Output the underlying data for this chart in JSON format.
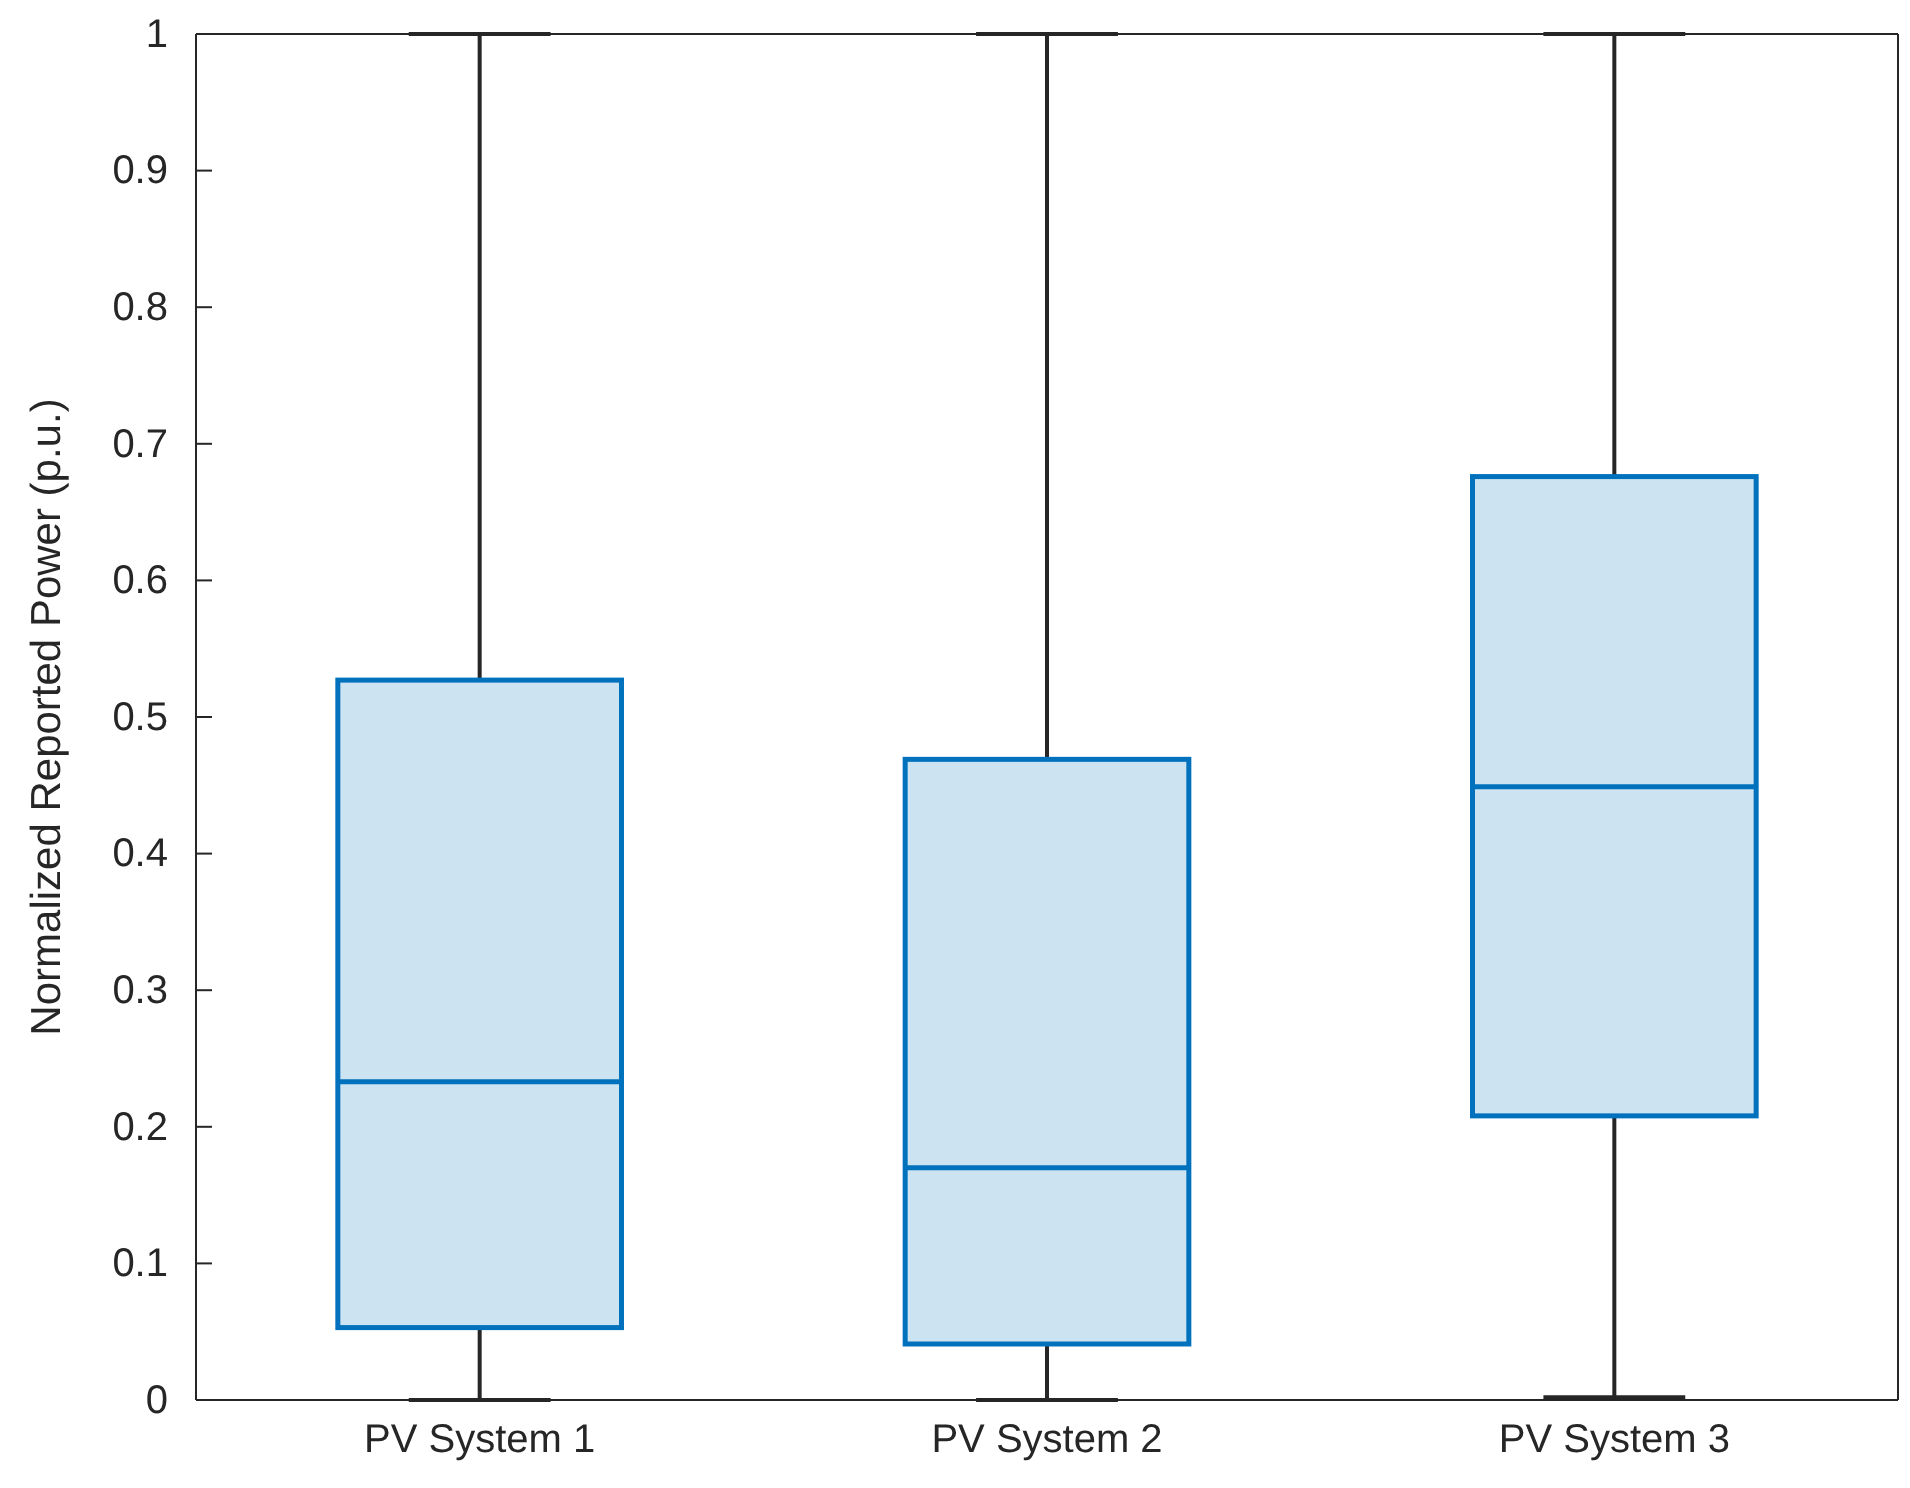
{
  "chart_data": {
    "type": "box",
    "ylabel": "Normalized Reported Power (p.u.)",
    "categories": [
      "PV System 1",
      "PV System 2",
      "PV System 3"
    ],
    "series": [
      {
        "color": "#0072bd",
        "boxes": [
          {
            "low": 0,
            "q1": 0.053,
            "median": 0.233,
            "q3": 0.527,
            "high": 1
          },
          {
            "low": 0,
            "q1": 0.041,
            "median": 0.17,
            "q3": 0.469,
            "high": 1
          },
          {
            "low": 0.002,
            "q1": 0.208,
            "median": 0.449,
            "q3": 0.676,
            "high": 1
          }
        ]
      }
    ],
    "ylim": [
      0,
      1
    ],
    "yticks": [
      0,
      0.1,
      0.2,
      0.3,
      0.4,
      0.5,
      0.6,
      0.7,
      0.8,
      0.9,
      1
    ],
    "grid": false
  }
}
